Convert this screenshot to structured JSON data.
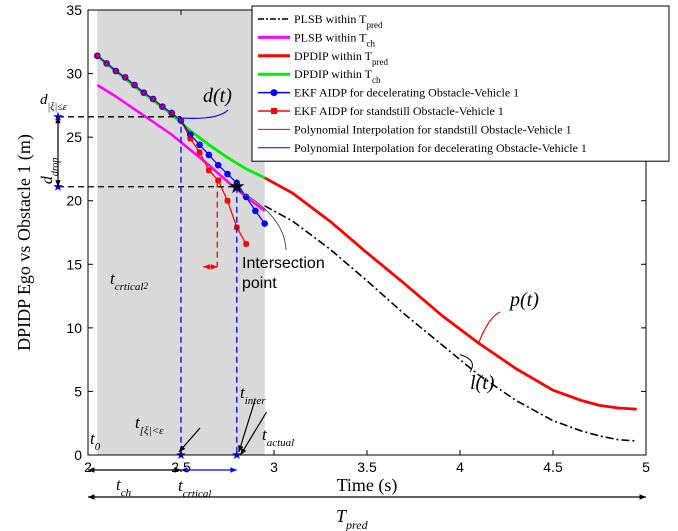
{
  "chart_data": {
    "type": "line",
    "xlabel": "Time (s)",
    "ylabel": "DPIDP Ego vs Obstacle 1 (m)",
    "xlim": [
      2,
      5
    ],
    "ylim": [
      0,
      35
    ],
    "x_ticks": [
      "2",
      "2.5",
      "3",
      "3.5",
      "4",
      "4.5",
      "5"
    ],
    "y_ticks": [
      "0",
      "5",
      "10",
      "15",
      "20",
      "25",
      "30",
      "35"
    ],
    "grid": false,
    "legend_position": "top-right",
    "shaded_region": {
      "x_from": 2.05,
      "x_to": 2.95,
      "color": "#d9d9d9"
    },
    "legend": [
      {
        "label": "PLSB within T",
        "sub": "pred",
        "color": "#000000",
        "style": "dashdot",
        "marker": ""
      },
      {
        "label": "PLSB within T",
        "sub": "ch",
        "color": "#ff00ff",
        "style": "solid",
        "marker": ""
      },
      {
        "label": "DPDIP within T",
        "sub": "pred",
        "color": "#ff0000",
        "style": "solid",
        "marker": ""
      },
      {
        "label": "DPDIP within T",
        "sub": "ch",
        "color": "#00ee00",
        "style": "solid",
        "marker": ""
      },
      {
        "label": "EKF AIDP for decelerating Obstacle-Vehicle 1",
        "sub": "",
        "color": "#0000ff",
        "style": "solid",
        "marker": "dot"
      },
      {
        "label": "EKF AIDP for standstill Obstacle-Vehicle 1",
        "sub": "",
        "color": "#ff0000",
        "style": "solid",
        "marker": "square"
      },
      {
        "label": "Polynomial Interpolation for standstill Obstacle-Vehicle 1",
        "sub": "",
        "color": "#ff0000",
        "style": "thin",
        "marker": ""
      },
      {
        "label": "Polynomial Interpolation for decelerating Obstacle-Vehicle 1",
        "sub": "",
        "color": "#0000ff",
        "style": "thin",
        "marker": ""
      }
    ],
    "series": [
      {
        "name": "PLSB within Tpred",
        "color": "#000000",
        "dash": "8,3,2,3",
        "width": 1.6,
        "x": [
          2.95,
          3.1,
          3.3,
          3.5,
          3.7,
          3.9,
          4.1,
          4.3,
          4.5,
          4.65,
          4.75,
          4.85,
          4.95
        ],
        "y": [
          19.6,
          18.4,
          16.2,
          13.7,
          11.1,
          8.7,
          6.3,
          4.3,
          2.7,
          1.9,
          1.5,
          1.2,
          1.1
        ]
      },
      {
        "name": "PLSB within Tch",
        "color": "#ff00ff",
        "dash": "",
        "width": 2.5,
        "x": [
          2.05,
          2.15,
          2.25,
          2.35,
          2.45,
          2.55,
          2.65,
          2.75,
          2.85,
          2.95
        ],
        "y": [
          29.1,
          28.2,
          27.2,
          26.2,
          25.2,
          24.0,
          22.8,
          21.5,
          20.3,
          19.2
        ]
      },
      {
        "name": "DPDIP within Tpred",
        "color": "#ff0000",
        "dash": "",
        "width": 2.8,
        "x": [
          2.95,
          3.1,
          3.3,
          3.5,
          3.7,
          3.9,
          4.1,
          4.3,
          4.5,
          4.65,
          4.75,
          4.85,
          4.95
        ],
        "y": [
          21.8,
          20.6,
          18.4,
          15.9,
          13.5,
          11.0,
          8.8,
          6.8,
          5.1,
          4.3,
          3.9,
          3.7,
          3.6
        ]
      },
      {
        "name": "DPDIP within Tch",
        "color": "#00ee00",
        "dash": "",
        "width": 2.8,
        "x": [
          2.05,
          2.15,
          2.25,
          2.35,
          2.45,
          2.55,
          2.65,
          2.75,
          2.85,
          2.95
        ],
        "y": [
          31.4,
          30.2,
          29.0,
          27.9,
          26.8,
          25.5,
          24.4,
          23.4,
          22.5,
          21.8
        ]
      },
      {
        "name": "EKF AIDP for decelerating Obstacle-Vehicle 1",
        "color": "#0000ff",
        "dash": "",
        "width": 1.2,
        "marker": "dot",
        "x": [
          2.05,
          2.1,
          2.15,
          2.2,
          2.25,
          2.3,
          2.35,
          2.4,
          2.45,
          2.5,
          2.55,
          2.6,
          2.65,
          2.7,
          2.75,
          2.8,
          2.85,
          2.9,
          2.95
        ],
        "y": [
          31.4,
          30.8,
          30.2,
          29.7,
          29.1,
          28.5,
          28.0,
          27.4,
          26.9,
          26.3,
          25.2,
          24.4,
          23.6,
          22.8,
          22.1,
          21.4,
          20.3,
          19.2,
          18.2
        ]
      },
      {
        "name": "EKF AIDP for standstill Obstacle-Vehicle 1",
        "color": "#ff0000",
        "dash": "",
        "width": 1.2,
        "marker": "square",
        "x": [
          2.05,
          2.1,
          2.15,
          2.2,
          2.25,
          2.3,
          2.35,
          2.4,
          2.45,
          2.5,
          2.55,
          2.6,
          2.65,
          2.7,
          2.75,
          2.8,
          2.85
        ],
        "y": [
          31.4,
          30.8,
          30.2,
          29.7,
          29.1,
          28.5,
          28.0,
          27.4,
          26.9,
          26.3,
          24.9,
          23.8,
          22.4,
          21.6,
          20.0,
          17.9,
          16.6
        ]
      },
      {
        "name": "Polynomial Interpolation for standstill Obstacle-Vehicle 1",
        "color": "#ff0000",
        "dash": "",
        "width": 0.8,
        "marker": "ring",
        "x": [
          2.05,
          2.1,
          2.15,
          2.2,
          2.25,
          2.3,
          2.35,
          2.4,
          2.45,
          2.5,
          2.55,
          2.6,
          2.65,
          2.7,
          2.75,
          2.8,
          2.85
        ],
        "y": [
          31.4,
          30.8,
          30.2,
          29.7,
          29.1,
          28.5,
          28.0,
          27.4,
          26.9,
          26.3,
          24.9,
          23.8,
          22.4,
          21.6,
          20.0,
          17.9,
          16.6
        ]
      },
      {
        "name": "Polynomial Interpolation for decelerating Obstacle-Vehicle 1",
        "color": "#0000ff",
        "dash": "",
        "width": 0.8,
        "marker": "ring",
        "x": [
          2.05,
          2.1,
          2.15,
          2.2,
          2.25,
          2.3,
          2.35,
          2.4,
          2.45,
          2.5,
          2.55,
          2.6,
          2.65,
          2.7,
          2.75,
          2.8,
          2.85,
          2.9,
          2.95
        ],
        "y": [
          31.4,
          30.8,
          30.2,
          29.7,
          29.1,
          28.5,
          28.0,
          27.4,
          26.9,
          26.3,
          25.2,
          24.4,
          23.6,
          22.8,
          22.1,
          21.4,
          20.3,
          19.2,
          18.2
        ]
      }
    ],
    "intersection_point": {
      "x": 2.8,
      "y": 21.1
    },
    "annotations": {
      "d_t": "d(t)",
      "p_t": "p(t)",
      "l_t": "l(t)",
      "intersection": [
        "Intersection",
        "point"
      ],
      "t0": "t",
      "t0_sub": "0",
      "t_inter": "t",
      "t_inter_sub": "inter",
      "t_actual": "t",
      "t_actual_sub": "actual",
      "t_xi": "t",
      "t_xi_sub": "[ξ|<ε",
      "t_ch": "t",
      "t_ch_sub": "ch",
      "t_crtical": "t",
      "t_crtical_sub": "crtical",
      "t_crtical2": "t",
      "t_crtical2_sub": "crtical",
      "t_crtical2_subsub": "2",
      "t_pred": "T",
      "t_pred_sub": "pred",
      "d_drop": "d",
      "d_drop_sub": "drop",
      "d_xi": "d",
      "d_xi_sub": "|ξ|≤ε"
    }
  }
}
